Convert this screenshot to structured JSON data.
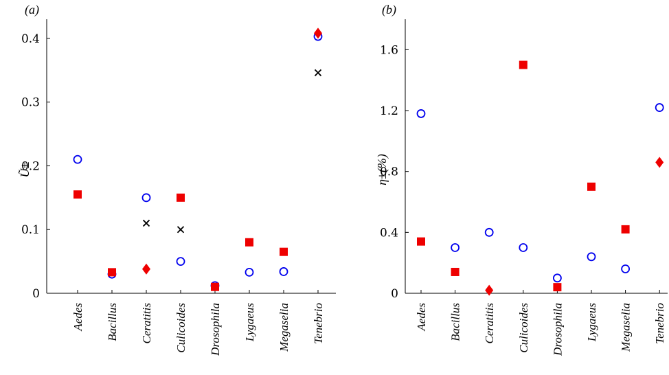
{
  "chart_data": [
    {
      "type": "scatter",
      "panel_label": "(a)",
      "ylabel": "Ũ±",
      "ylim": [
        0,
        0.43
      ],
      "yticks": [
        0,
        0.1,
        0.2,
        0.3,
        0.4
      ],
      "ytick_labels": [
        "0",
        "0.1",
        "0.2",
        "0.3",
        "0.4"
      ],
      "categories": [
        "Aedes",
        "Bacillus",
        "Ceratitis",
        "Culicoides",
        "Drosophila",
        "Lygaeus",
        "Megaselia",
        "Tenebrio"
      ],
      "grid": false,
      "series": [
        {
          "marker": "circle",
          "color": "#0000ee",
          "values": [
            0.21,
            0.03,
            0.15,
            0.05,
            0.012,
            0.033,
            0.034,
            0.403
          ]
        },
        {
          "marker": "square",
          "color": "#ee0000",
          "values": [
            0.155,
            0.033,
            null,
            0.15,
            0.01,
            0.08,
            0.065,
            null
          ]
        },
        {
          "marker": "diamond",
          "color": "#ee0000",
          "values": [
            null,
            null,
            0.038,
            null,
            null,
            null,
            null,
            0.408
          ]
        },
        {
          "marker": "cross",
          "color": "#000000",
          "values": [
            null,
            null,
            0.11,
            0.1,
            null,
            null,
            null,
            0.346
          ]
        }
      ]
    },
    {
      "type": "scatter",
      "panel_label": "(b)",
      "ylabel": "η±(%)",
      "ylim": [
        0,
        1.8
      ],
      "yticks": [
        0,
        0.4,
        0.8,
        1.2,
        1.6
      ],
      "ytick_labels": [
        "0",
        "0.4",
        "0.8",
        "1.2",
        "1.6"
      ],
      "categories": [
        "Aedes",
        "Bacillus",
        "Ceratitis",
        "Culicoides",
        "Drosophila",
        "Lygaeus",
        "Megaselia",
        "Tenebrio"
      ],
      "grid": false,
      "series": [
        {
          "marker": "circle",
          "color": "#0000ee",
          "values": [
            1.18,
            0.3,
            0.4,
            0.3,
            0.1,
            0.24,
            0.16,
            1.22
          ]
        },
        {
          "marker": "square",
          "color": "#ee0000",
          "values": [
            0.34,
            0.14,
            null,
            1.5,
            0.04,
            0.7,
            0.42,
            null
          ]
        },
        {
          "marker": "diamond",
          "color": "#ee0000",
          "values": [
            null,
            null,
            0.02,
            null,
            null,
            null,
            null,
            0.86
          ]
        }
      ]
    }
  ]
}
